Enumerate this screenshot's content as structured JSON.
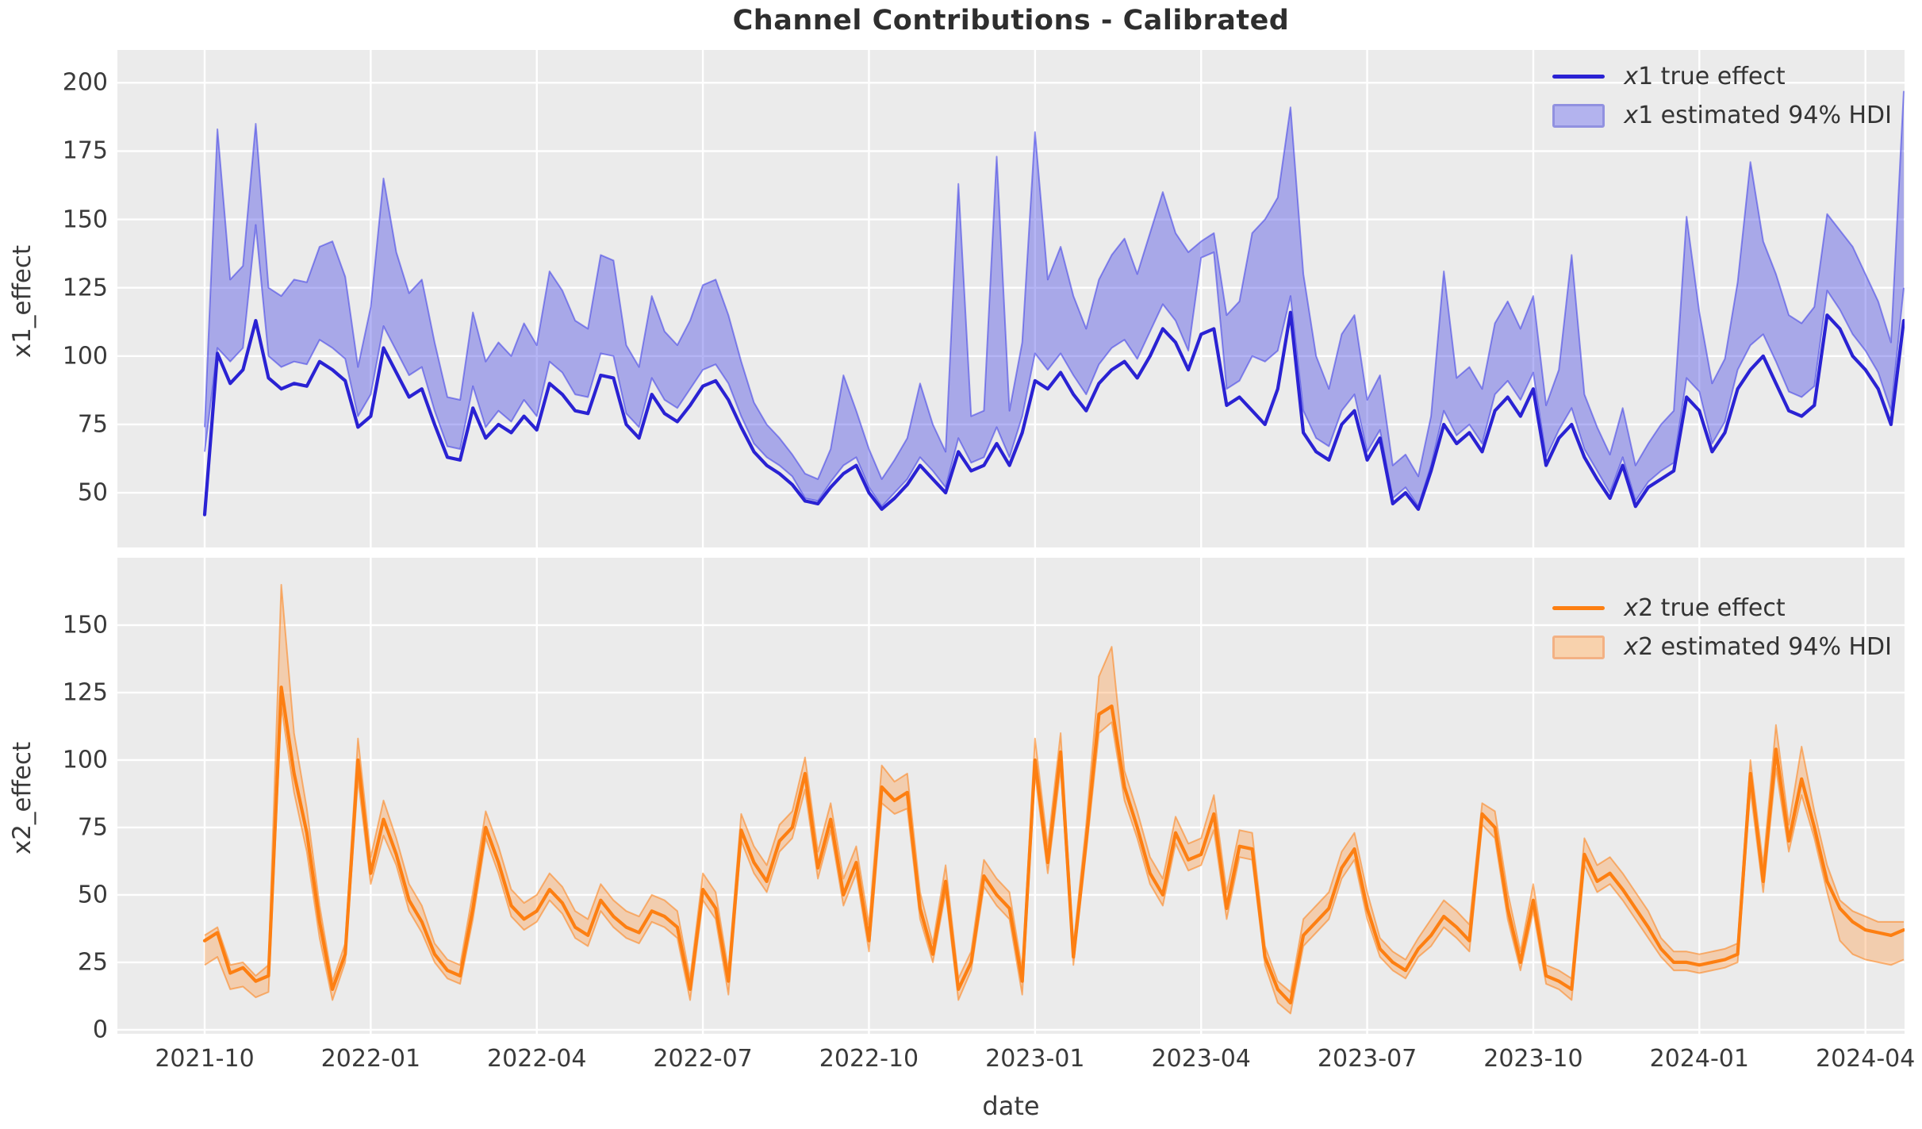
{
  "title": "Channel Contributions - Calibrated",
  "xlabel": "date",
  "x_axis": {
    "start_date": "2021-10-03",
    "freq_days": 7,
    "n_points": 134,
    "tick_labels": [
      "2021-10",
      "2022-01",
      "2022-04",
      "2022-07",
      "2022-10",
      "2023-01",
      "2023-04",
      "2023-07",
      "2023-10",
      "2024-01",
      "2024-04"
    ],
    "tick_indices": [
      0,
      13,
      26,
      39,
      52,
      65,
      78,
      91,
      104,
      117,
      130
    ]
  },
  "colors": {
    "plot_background": "#ebebeb",
    "grid": "#ffffff",
    "x1_line": "#2a22d3",
    "x1_band_fill": "rgba(61,61,230,0.38)",
    "x1_band_edge": "rgba(61,61,230,0.55)",
    "x2_line": "#fd7f12",
    "x2_band_fill": "rgba(255,150,60,0.35)",
    "x2_band_edge": "rgba(253,127,20,0.55)",
    "text": "#3a3a3a"
  },
  "chart_data": [
    {
      "type": "line",
      "ylabel": "x1_effect",
      "ylim": [
        30,
        212
      ],
      "yticks": [
        50,
        75,
        100,
        125,
        150,
        175,
        200
      ],
      "legend": [
        {
          "var_symbol": "x",
          "label_rest": "1 true effect",
          "kind": "line"
        },
        {
          "var_symbol": "x",
          "label_rest": "1 estimated 94% HDI",
          "kind": "patch"
        }
      ],
      "series": [
        {
          "name": "x1 true effect",
          "values": [
            42,
            101,
            90,
            95,
            113,
            92,
            88,
            90,
            89,
            98,
            95,
            91,
            74,
            78,
            103,
            94,
            85,
            88,
            75,
            63,
            62,
            81,
            70,
            75,
            72,
            78,
            73,
            90,
            86,
            80,
            79,
            93,
            92,
            75,
            70,
            86,
            79,
            76,
            82,
            89,
            91,
            84,
            74,
            65,
            60,
            57,
            53,
            47,
            46,
            52,
            57,
            60,
            50,
            44,
            48,
            53,
            60,
            55,
            50,
            65,
            58,
            60,
            68,
            60,
            72,
            91,
            88,
            94,
            86,
            80,
            90,
            95,
            98,
            92,
            100,
            110,
            105,
            95,
            108,
            110,
            82,
            85,
            80,
            75,
            88,
            116,
            72,
            65,
            62,
            75,
            80,
            62,
            70,
            46,
            50,
            44,
            58,
            75,
            68,
            72,
            65,
            80,
            85,
            78,
            88,
            60,
            70,
            75,
            63,
            55,
            48,
            60,
            45,
            52,
            55,
            58,
            85,
            80,
            65,
            72,
            88,
            95,
            100,
            90,
            80,
            78,
            82,
            115,
            110,
            100,
            95,
            88,
            75,
            113
          ]
        },
        {
          "name": "x1 estimated 94% HDI lower",
          "values": [
            65,
            103,
            98,
            103,
            148,
            100,
            96,
            98,
            97,
            106,
            103,
            99,
            78,
            86,
            111,
            102,
            93,
            96,
            80,
            67,
            66,
            89,
            74,
            80,
            76,
            84,
            78,
            98,
            94,
            86,
            85,
            101,
            100,
            79,
            74,
            92,
            84,
            81,
            88,
            95,
            97,
            90,
            78,
            68,
            63,
            60,
            56,
            48,
            47,
            54,
            60,
            63,
            52,
            45,
            50,
            55,
            63,
            58,
            52,
            70,
            61,
            63,
            74,
            63,
            78,
            101,
            95,
            101,
            93,
            86,
            97,
            103,
            106,
            99,
            109,
            119,
            113,
            102,
            136,
            138,
            88,
            91,
            100,
            98,
            102,
            122,
            80,
            70,
            67,
            80,
            86,
            65,
            73,
            48,
            52,
            45,
            60,
            80,
            71,
            75,
            68,
            86,
            91,
            84,
            94,
            63,
            73,
            81,
            66,
            58,
            50,
            63,
            47,
            54,
            58,
            61,
            92,
            87,
            68,
            76,
            95,
            104,
            108,
            98,
            87,
            85,
            89,
            124,
            117,
            108,
            102,
            94,
            80,
            125
          ]
        },
        {
          "name": "x1 estimated 94% HDI upper",
          "values": [
            74,
            183,
            128,
            133,
            185,
            125,
            122,
            128,
            127,
            140,
            142,
            129,
            96,
            118,
            165,
            138,
            123,
            128,
            105,
            85,
            84,
            116,
            98,
            105,
            100,
            112,
            104,
            131,
            124,
            113,
            110,
            137,
            135,
            104,
            96,
            122,
            109,
            104,
            113,
            126,
            128,
            115,
            98,
            83,
            75,
            70,
            64,
            57,
            55,
            66,
            93,
            80,
            66,
            55,
            62,
            70,
            90,
            75,
            65,
            163,
            78,
            80,
            173,
            80,
            105,
            182,
            128,
            140,
            122,
            110,
            128,
            137,
            143,
            130,
            145,
            160,
            145,
            138,
            142,
            145,
            115,
            120,
            145,
            150,
            158,
            191,
            130,
            100,
            88,
            108,
            115,
            84,
            93,
            60,
            64,
            56,
            78,
            131,
            92,
            96,
            88,
            112,
            120,
            110,
            122,
            82,
            95,
            137,
            86,
            74,
            64,
            81,
            60,
            68,
            75,
            80,
            151,
            116,
            90,
            99,
            127,
            171,
            142,
            130,
            115,
            112,
            118,
            152,
            146,
            140,
            130,
            120,
            105,
            197
          ]
        }
      ]
    },
    {
      "type": "line",
      "ylabel": "x2_effect",
      "ylim": [
        -1.5,
        175
      ],
      "yticks": [
        0,
        25,
        50,
        75,
        100,
        125,
        150
      ],
      "legend": [
        {
          "var_symbol": "x",
          "label_rest": "2 true effect",
          "kind": "line"
        },
        {
          "var_symbol": "x",
          "label_rest": "2 estimated 94% HDI",
          "kind": "patch"
        }
      ],
      "series": [
        {
          "name": "x2 true effect",
          "values": [
            33,
            36,
            21,
            23,
            18,
            20,
            127,
            95,
            73,
            40,
            15,
            28,
            100,
            58,
            78,
            65,
            48,
            40,
            28,
            22,
            20,
            45,
            75,
            62,
            46,
            41,
            44,
            52,
            47,
            38,
            35,
            48,
            42,
            38,
            36,
            44,
            42,
            38,
            15,
            52,
            45,
            18,
            74,
            62,
            55,
            70,
            75,
            95,
            60,
            78,
            50,
            62,
            33,
            90,
            85,
            88,
            45,
            28,
            55,
            15,
            25,
            57,
            50,
            45,
            18,
            100,
            62,
            103,
            27,
            70,
            117,
            120,
            90,
            75,
            58,
            50,
            73,
            63,
            65,
            80,
            45,
            68,
            67,
            27,
            15,
            10,
            35,
            40,
            45,
            60,
            67,
            45,
            30,
            25,
            22,
            30,
            35,
            42,
            38,
            33,
            80,
            75,
            45,
            25,
            48,
            20,
            18,
            15,
            65,
            55,
            58,
            52,
            45,
            38,
            30,
            25,
            25,
            24,
            25,
            26,
            28,
            95,
            55,
            104,
            70,
            93,
            75,
            55,
            45,
            40,
            37,
            36,
            35,
            37
          ]
        },
        {
          "name": "x2 estimated 94% HDI lower",
          "values": [
            24,
            27,
            15,
            16,
            12,
            14,
            120,
            88,
            66,
            34,
            11,
            25,
            93,
            54,
            72,
            61,
            44,
            36,
            25,
            19,
            17,
            41,
            71,
            58,
            42,
            37,
            40,
            48,
            43,
            34,
            31,
            44,
            38,
            34,
            32,
            40,
            38,
            34,
            11,
            48,
            41,
            13,
            70,
            58,
            51,
            66,
            71,
            89,
            56,
            74,
            46,
            58,
            29,
            84,
            80,
            82,
            41,
            25,
            51,
            11,
            22,
            53,
            46,
            41,
            13,
            95,
            58,
            97,
            24,
            66,
            110,
            114,
            85,
            71,
            54,
            46,
            69,
            59,
            61,
            74,
            41,
            64,
            63,
            24,
            10,
            6,
            31,
            36,
            41,
            56,
            63,
            41,
            27,
            22,
            19,
            27,
            31,
            38,
            34,
            29,
            76,
            71,
            41,
            22,
            44,
            17,
            15,
            11,
            61,
            51,
            54,
            48,
            41,
            34,
            27,
            22,
            22,
            21,
            22,
            23,
            25,
            89,
            51,
            97,
            66,
            87,
            71,
            51,
            33,
            28,
            26,
            25,
            24,
            26
          ]
        },
        {
          "name": "x2 estimated 94% HDI upper",
          "values": [
            35,
            38,
            24,
            25,
            20,
            24,
            165,
            110,
            82,
            46,
            18,
            32,
            108,
            64,
            85,
            71,
            54,
            46,
            32,
            26,
            24,
            51,
            81,
            68,
            52,
            47,
            50,
            58,
            53,
            44,
            41,
            54,
            48,
            44,
            42,
            50,
            48,
            44,
            19,
            58,
            51,
            22,
            80,
            68,
            61,
            76,
            81,
            101,
            66,
            84,
            56,
            68,
            39,
            98,
            92,
            95,
            51,
            32,
            61,
            19,
            29,
            63,
            56,
            51,
            22,
            108,
            68,
            110,
            31,
            76,
            131,
            142,
            96,
            81,
            64,
            56,
            79,
            69,
            71,
            87,
            51,
            74,
            73,
            31,
            18,
            14,
            41,
            46,
            51,
            66,
            73,
            51,
            34,
            29,
            26,
            34,
            41,
            48,
            44,
            39,
            84,
            81,
            51,
            29,
            54,
            24,
            22,
            19,
            71,
            61,
            64,
            58,
            51,
            44,
            34,
            29,
            29,
            28,
            29,
            30,
            32,
            100,
            61,
            113,
            76,
            105,
            81,
            61,
            48,
            44,
            42,
            40,
            40,
            40
          ]
        }
      ]
    }
  ]
}
